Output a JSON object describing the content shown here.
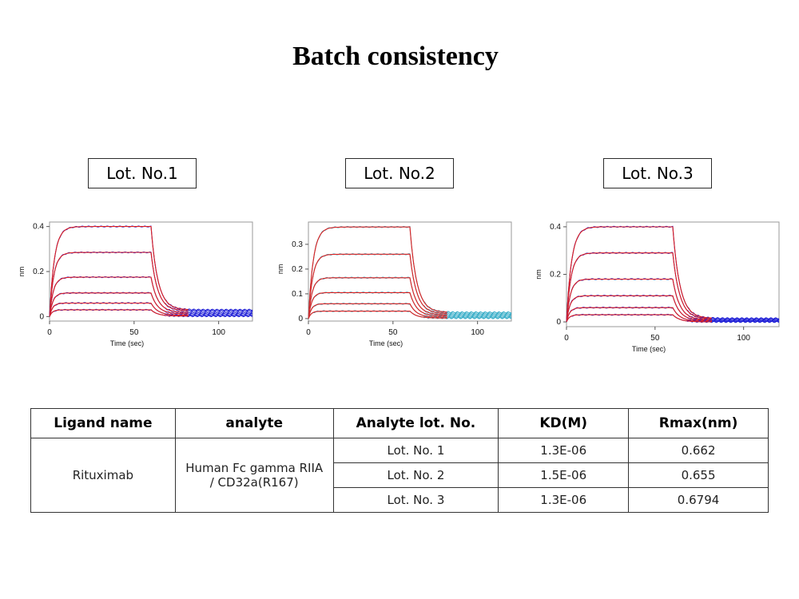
{
  "page_title": "Batch consistency",
  "chart_data": [
    {
      "type": "line",
      "lot_label": "Lot. No.1",
      "xlabel": "Time (sec)",
      "ylabel": "nm",
      "x_ticks": [
        0,
        50,
        100
      ],
      "y_ticks": [
        0,
        0.2,
        0.4
      ],
      "xlim": [
        0,
        120
      ],
      "ylim": [
        -0.02,
        0.42
      ],
      "association_end": 60,
      "plateaus": [
        0.4,
        0.285,
        0.175,
        0.105,
        0.06,
        0.03
      ],
      "baseline": [
        0.03,
        0.025,
        0.018,
        0.012,
        0.006,
        0.002
      ],
      "colors": {
        "data": "#1f1fd6",
        "fit": "#e0201f"
      }
    },
    {
      "type": "line",
      "lot_label": "Lot. No.2",
      "xlabel": "Time (sec)",
      "ylabel": "nm",
      "x_ticks": [
        0,
        50,
        100
      ],
      "y_ticks": [
        0,
        0.1,
        0.2,
        0.3
      ],
      "xlim": [
        0,
        120
      ],
      "ylim": [
        -0.01,
        0.39
      ],
      "association_end": 60,
      "plateaus": [
        0.37,
        0.26,
        0.165,
        0.105,
        0.06,
        0.03
      ],
      "baseline": [
        0.025,
        0.02,
        0.015,
        0.01,
        0.005,
        0.002
      ],
      "colors": {
        "data": "#3aaec8",
        "fit": "#e0201f"
      }
    },
    {
      "type": "line",
      "lot_label": "Lot. No.3",
      "xlabel": "Time (sec)",
      "ylabel": "nm",
      "x_ticks": [
        0,
        50,
        100
      ],
      "y_ticks": [
        0,
        0.2,
        0.4
      ],
      "xlim": [
        0,
        120
      ],
      "ylim": [
        -0.02,
        0.42
      ],
      "association_end": 60,
      "plateaus": [
        0.4,
        0.29,
        0.18,
        0.11,
        0.06,
        0.03
      ],
      "baseline": [
        0.015,
        0.012,
        0.008,
        0.005,
        0.002,
        0.0
      ],
      "colors": {
        "data": "#1f1fd6",
        "fit": "#e0201f"
      }
    }
  ],
  "table": {
    "headers": [
      "Ligand name",
      "analyte",
      "Analyte lot. No.",
      "KD(M)",
      "Rmax(nm)"
    ],
    "ligand": "Rituximab",
    "analyte_line1": "Human Fc gamma RIIA",
    "analyte_line2": "/ CD32a(R167)",
    "rows": [
      {
        "lot": "Lot. No. 1",
        "kd": "1.3E-06",
        "rmax": "0.662"
      },
      {
        "lot": "Lot. No. 2",
        "kd": "1.5E-06",
        "rmax": "0.655"
      },
      {
        "lot": "Lot. No. 3",
        "kd": "1.3E-06",
        "rmax": "0.6794"
      }
    ]
  }
}
